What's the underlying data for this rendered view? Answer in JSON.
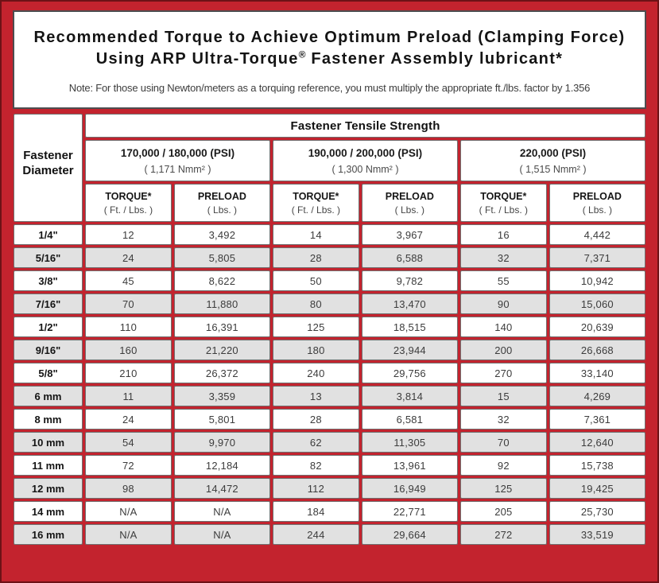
{
  "frame": {
    "red_color": "#c3232e",
    "edge_color": "#6d1216"
  },
  "title": {
    "line1": "Recommended Torque to Achieve Optimum Preload (Clamping Force)",
    "line2_before": "Using ARP Ultra-Torque",
    "reg_mark": "®",
    "line2_after": " Fastener Assembly lubricant*",
    "note": "Note: For those using Newton/meters as a torquing reference, you must multiply the appropriate ft./lbs. factor by 1.356"
  },
  "table": {
    "tensile_header": "Fastener Tensile Strength",
    "diameter_header": {
      "line1": "Fastener",
      "line2": "Diameter"
    },
    "groups": [
      {
        "psi": "170,000 / 180,000 (PSI)",
        "nmm": "( 1,171 Nmm² )"
      },
      {
        "psi": "190,000 / 200,000 (PSI)",
        "nmm": "( 1,300 Nmm² )"
      },
      {
        "psi": "220,000 (PSI)",
        "nmm": "( 1,515 Nmm² )"
      }
    ],
    "col_headers": {
      "torque_label": "TORQUE*",
      "torque_unit": "( Ft. / Lbs. )",
      "preload_label": "PRELOAD",
      "preload_unit": "( Lbs. )"
    },
    "rows": [
      {
        "diameter": "1/4\"",
        "values": [
          "12",
          "3,492",
          "14",
          "3,967",
          "16",
          "4,442"
        ]
      },
      {
        "diameter": "5/16\"",
        "values": [
          "24",
          "5,805",
          "28",
          "6,588",
          "32",
          "7,371"
        ]
      },
      {
        "diameter": "3/8\"",
        "values": [
          "45",
          "8,622",
          "50",
          "9,782",
          "55",
          "10,942"
        ]
      },
      {
        "diameter": "7/16\"",
        "values": [
          "70",
          "11,880",
          "80",
          "13,470",
          "90",
          "15,060"
        ]
      },
      {
        "diameter": "1/2\"",
        "values": [
          "110",
          "16,391",
          "125",
          "18,515",
          "140",
          "20,639"
        ]
      },
      {
        "diameter": "9/16\"",
        "values": [
          "160",
          "21,220",
          "180",
          "23,944",
          "200",
          "26,668"
        ]
      },
      {
        "diameter": "5/8\"",
        "values": [
          "210",
          "26,372",
          "240",
          "29,756",
          "270",
          "33,140"
        ]
      },
      {
        "diameter": "6 mm",
        "values": [
          "11",
          "3,359",
          "13",
          "3,814",
          "15",
          "4,269"
        ]
      },
      {
        "diameter": "8 mm",
        "values": [
          "24",
          "5,801",
          "28",
          "6,581",
          "32",
          "7,361"
        ]
      },
      {
        "diameter": "10 mm",
        "values": [
          "54",
          "9,970",
          "62",
          "11,305",
          "70",
          "12,640"
        ]
      },
      {
        "diameter": "11 mm",
        "values": [
          "72",
          "12,184",
          "82",
          "13,961",
          "92",
          "15,738"
        ]
      },
      {
        "diameter": "12 mm",
        "values": [
          "98",
          "14,472",
          "112",
          "16,949",
          "125",
          "19,425"
        ]
      },
      {
        "diameter": "14 mm",
        "values": [
          "N/A",
          "N/A",
          "184",
          "22,771",
          "205",
          "25,730"
        ]
      },
      {
        "diameter": "16 mm",
        "values": [
          "N/A",
          "N/A",
          "244",
          "29,664",
          "272",
          "33,519"
        ]
      }
    ]
  }
}
